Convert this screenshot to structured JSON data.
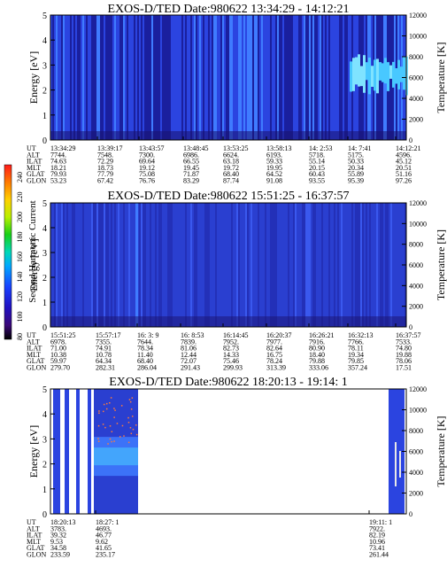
{
  "colors": {
    "background": "#ffffff",
    "data_dark": "#1a1f9e",
    "data_mid": "#2b44e0",
    "data_bright": "#3f7bff",
    "data_cyan": "#48c8ff",
    "empty_panel": "#ffffff"
  },
  "colorbar": {
    "label": "Second Harmonic Current",
    "ticks": [
      "240",
      "220",
      "200",
      "180",
      "160",
      "140",
      "120",
      "100",
      "80"
    ],
    "colors": [
      "#ff1a1a",
      "#ff7a00",
      "#ffd000",
      "#b8f000",
      "#18d018",
      "#00d8b8",
      "#00a8ff",
      "#1840ff",
      "#2010c0",
      "#3a0878",
      "#000000"
    ]
  },
  "row_labels": [
    "UT",
    "ALT",
    "ILAT",
    "MLT",
    "GLAT",
    "GLON"
  ],
  "chart_data": [
    {
      "type": "heatmap",
      "title": "EXOS-D/TED   Date:980622  13:34:29 - 14:12:21",
      "ylabel": "Energy [eV]",
      "y2label": "Temperature [K]",
      "ylim": [
        0,
        5
      ],
      "y2lim": [
        0,
        12000
      ],
      "yticks": [
        "0",
        "1",
        "2",
        "3",
        "4",
        "5"
      ],
      "y2ticks": [
        "0",
        "2000",
        "4000",
        "6000",
        "8000",
        "10000",
        "12000"
      ],
      "columns": [
        {
          "UT": "13:34:29",
          "ALT": "7744.",
          "ILAT": "74.63",
          "MLT": "18.21",
          "GLAT": "79.93",
          "GLON": "53.23"
        },
        {
          "UT": "13:39:17",
          "ALT": "7548.",
          "ILAT": "72.29",
          "MLT": "18.73",
          "GLAT": "77.79",
          "GLON": "67.42"
        },
        {
          "UT": "13:43:57",
          "ALT": "7300.",
          "ILAT": "69.64",
          "MLT": "19.12",
          "GLAT": "75.08",
          "GLON": "76.76"
        },
        {
          "UT": "13:48:45",
          "ALT": "6986.",
          "ILAT": "66.55",
          "MLT": "19.45",
          "GLAT": "71.87",
          "GLON": "83.29"
        },
        {
          "UT": "13:53:25",
          "ALT": "6624.",
          "ILAT": "63.18",
          "MLT": "19.72",
          "GLAT": "68.40",
          "GLON": "87.74"
        },
        {
          "UT": "13:58:13",
          "ALT": "6193.",
          "ILAT": "59.33",
          "MLT": "19.95",
          "GLAT": "64.52",
          "GLON": "91.08"
        },
        {
          "UT": "14:  2:53",
          "ALT": "5718.",
          "ILAT": "55.14",
          "MLT": "20.15",
          "GLAT": "60.43",
          "GLON": "93.55"
        },
        {
          "UT": "14:  7:41",
          "ALT": "5175.",
          "ILAT": "50.33",
          "MLT": "20.34",
          "GLAT": "55.89",
          "GLON": "95.39"
        },
        {
          "UT": "14:12:21",
          "ALT": "4596.",
          "ILAT": "45.12",
          "MLT": "20.51",
          "GLAT": "51.16",
          "GLON": "97.26"
        }
      ]
    },
    {
      "type": "heatmap",
      "title": "EXOS-D/TED   Date:980622  15:51:25 - 16:37:57",
      "ylabel": "Energy [eV]",
      "y2label": "Temperature [K]",
      "ylim": [
        0,
        5
      ],
      "y2lim": [
        0,
        12000
      ],
      "yticks": [
        "0",
        "1",
        "2",
        "3",
        "4",
        "5"
      ],
      "y2ticks": [
        "0",
        "2000",
        "4000",
        "6000",
        "8000",
        "10000",
        "12000"
      ],
      "columns": [
        {
          "UT": "15:51:25",
          "ALT": "6978.",
          "ILAT": "71.00",
          "MLT": "10.38",
          "GLAT": "59.97",
          "GLON": "279.70"
        },
        {
          "UT": "15:57:17",
          "ALT": "7355.",
          "ILAT": "74.91",
          "MLT": "10.78",
          "GLAT": "64.34",
          "GLON": "282.31"
        },
        {
          "UT": "16:  3:  9",
          "ALT": "7644.",
          "ILAT": "78.34",
          "MLT": "11.40",
          "GLAT": "68.40",
          "GLON": "286.04"
        },
        {
          "UT": "16:  8:53",
          "ALT": "7839.",
          "ILAT": "81.06",
          "MLT": "12.44",
          "GLAT": "72.07",
          "GLON": "291.43"
        },
        {
          "UT": "16:14:45",
          "ALT": "7952.",
          "ILAT": "82.73",
          "MLT": "14.33",
          "GLAT": "75.46",
          "GLON": "299.93"
        },
        {
          "UT": "16:20:37",
          "ALT": "7977.",
          "ILAT": "82.64",
          "MLT": "16.75",
          "GLAT": "78.24",
          "GLON": "313.39"
        },
        {
          "UT": "16:26:21",
          "ALT": "7916.",
          "ILAT": "80.90",
          "MLT": "18.40",
          "GLAT": "79.88",
          "GLON": "333.06"
        },
        {
          "UT": "16:32:13",
          "ALT": "7766.",
          "ILAT": "78.11",
          "MLT": "19.34",
          "GLAT": "79.85",
          "GLON": "357.24"
        },
        {
          "UT": "16:37:57",
          "ALT": "7533.",
          "ILAT": "74.80",
          "MLT": "19.88",
          "GLAT": "78.06",
          "GLON": "17.51"
        }
      ]
    },
    {
      "type": "heatmap",
      "title": "EXOS-D/TED   Date:980622  18:20:13 - 19:14:  1",
      "ylabel": "Energy [eV]",
      "y2label": "Temperature [K]",
      "ylim": [
        0,
        5
      ],
      "y2lim": [
        0,
        12000
      ],
      "yticks": [
        "0",
        "1",
        "2",
        "3",
        "4",
        "5"
      ],
      "y2ticks": [
        "0",
        "2000",
        "4000",
        "6000",
        "8000",
        "10000",
        "12000"
      ],
      "columns": [
        {
          "UT": "18:20:13",
          "ALT": "3783.",
          "ILAT": "39.32",
          "MLT": "9.53",
          "GLAT": "34.58",
          "GLON": "233.59"
        },
        {
          "UT": "18:27:  1",
          "ALT": "4693.",
          "ILAT": "46.77",
          "MLT": "9.62",
          "GLAT": "41.65",
          "GLON": "235.17"
        },
        {
          "UT": "19:11:  1",
          "ALT": "7922.",
          "ILAT": "82.19",
          "MLT": "10.96",
          "GLAT": "73.41",
          "GLON": "261.44"
        }
      ]
    }
  ]
}
